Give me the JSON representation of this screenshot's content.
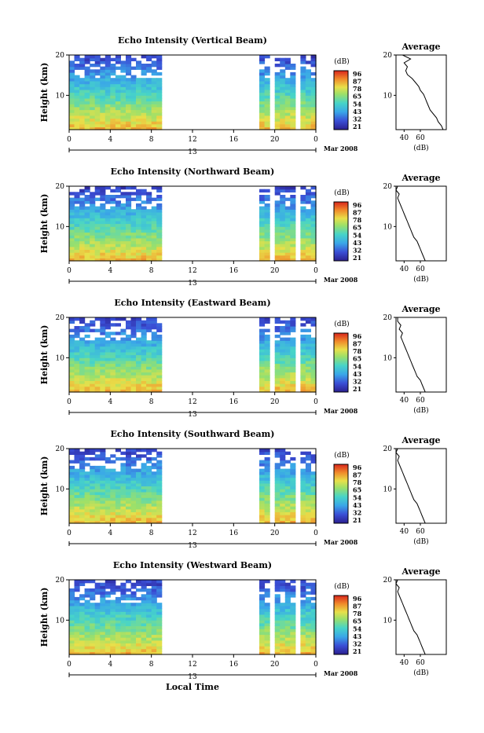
{
  "chart_data": {
    "type": "heatmap",
    "panels": [
      {
        "title": "Echo Intensity (Vertical Beam)",
        "blank_gaps": [
          [
            8.9,
            18.7
          ],
          [
            19.7,
            19.9
          ],
          [
            22.1,
            22.3
          ]
        ],
        "avg_db": [
          88,
          86,
          82,
          80,
          76,
          72,
          70,
          68,
          66,
          64,
          60,
          58,
          54,
          50,
          44,
          42,
          44,
          40,
          48,
          38
        ]
      },
      {
        "title": "Echo Intensity (Northward Beam)",
        "blank_gaps": [
          [
            8.9,
            18.7
          ],
          [
            19.7,
            19.9
          ],
          [
            22.1,
            22.3
          ]
        ],
        "avg_db": [
          66,
          64,
          62,
          60,
          58,
          56,
          52,
          50,
          48,
          46,
          44,
          42,
          40,
          38,
          36,
          34,
          32,
          34,
          30,
          32
        ]
      },
      {
        "title": "Echo Intensity (Eastward Beam)",
        "blank_gaps": [
          [
            8.9,
            18.7
          ],
          [
            19.7,
            19.9
          ],
          [
            22.1,
            22.3
          ]
        ],
        "avg_db": [
          66,
          64,
          62,
          60,
          56,
          54,
          52,
          50,
          48,
          46,
          44,
          42,
          40,
          38,
          36,
          38,
          34,
          36,
          32,
          32
        ]
      },
      {
        "title": "Echo Intensity (Southward Beam)",
        "blank_gaps": [
          [
            8.9,
            18.7
          ],
          [
            19.7,
            19.9
          ],
          [
            22.1,
            22.3
          ]
        ],
        "avg_db": [
          66,
          64,
          62,
          60,
          58,
          56,
          52,
          50,
          48,
          46,
          44,
          42,
          40,
          38,
          36,
          34,
          32,
          34,
          30,
          32
        ]
      },
      {
        "title": "Echo Intensity (Westward Beam)",
        "blank_gaps": [
          [
            8.9,
            18.7
          ],
          [
            19.7,
            19.9
          ],
          [
            22.1,
            22.3
          ]
        ],
        "avg_db": [
          66,
          64,
          62,
          60,
          58,
          56,
          52,
          50,
          48,
          46,
          44,
          42,
          40,
          38,
          36,
          34,
          32,
          34,
          30,
          32
        ]
      }
    ],
    "ylabel": "Height (km)",
    "yticks": [
      "20",
      "10"
    ],
    "ylim_km": [
      1.5,
      20
    ],
    "xticks": [
      "0",
      "4",
      "8",
      "12",
      "16",
      "20",
      "0"
    ],
    "xlim_hours": [
      0,
      24
    ],
    "date_tick": "13",
    "date_label": "Mar 2008",
    "xlabel": "Local Time",
    "colorbar": {
      "unit": "(dB)",
      "ticks": [
        "96",
        "87",
        "78",
        "65",
        "54",
        "43",
        "32",
        "21"
      ]
    },
    "avg_panel": {
      "title": "Average",
      "xlabel": "(dB)",
      "yticks": [
        "20",
        "10"
      ],
      "xticks_vertical": [
        "40",
        "60"
      ],
      "xticks_other": [
        "40",
        "60"
      ]
    }
  }
}
